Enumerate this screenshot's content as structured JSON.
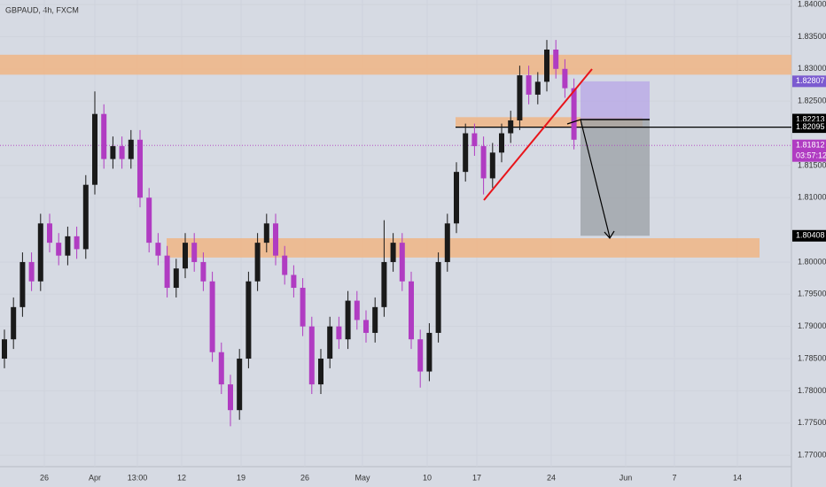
{
  "chart_data": {
    "type": "candlestick",
    "title": "GBPAUD, 4h, FXCM",
    "up_color": "#1a1a1a",
    "down_color": "#b03cc2",
    "ylim": [
      1.7685,
      1.8407
    ],
    "yticks": [
      {
        "value": 1.84,
        "label": "1.84000"
      },
      {
        "value": 1.835,
        "label": "1.83500"
      },
      {
        "value": 1.83,
        "label": "1.83000"
      },
      {
        "value": 1.825,
        "label": "1.82500"
      },
      {
        "value": 1.815,
        "label": "1.81500"
      },
      {
        "value": 1.81,
        "label": "1.81000"
      },
      {
        "value": 1.8,
        "label": "1.80000"
      },
      {
        "value": 1.795,
        "label": "1.79500"
      },
      {
        "value": 1.79,
        "label": "1.79000"
      },
      {
        "value": 1.785,
        "label": "1.78500"
      },
      {
        "value": 1.78,
        "label": "1.78000"
      },
      {
        "value": 1.775,
        "label": "1.77500"
      },
      {
        "value": 1.77,
        "label": "1.77000"
      }
    ],
    "xlabels": [
      "26",
      "Apr",
      "13:00",
      "12",
      "19",
      "26",
      "May",
      "10",
      "17",
      "24",
      "Jun",
      "7",
      "14"
    ],
    "open": [
      1.785,
      1.788,
      1.793,
      1.8,
      1.797,
      1.806,
      1.803,
      1.801,
      1.804,
      1.802,
      1.812,
      1.823,
      1.816,
      1.818,
      1.816,
      1.819,
      1.81,
      1.803,
      1.801,
      1.796,
      1.799,
      1.803,
      1.8,
      1.797,
      1.786,
      1.781,
      1.777,
      1.785,
      1.797,
      1.803,
      1.806,
      1.801,
      1.798,
      1.796,
      1.79,
      1.781,
      1.785,
      1.79,
      1.788,
      1.794,
      1.791,
      1.789,
      1.793,
      1.8,
      1.803,
      1.797,
      1.788,
      1.783,
      1.789,
      1.8,
      1.806,
      1.814,
      1.82,
      1.818,
      1.813,
      1.817,
      1.82,
      1.822,
      1.829,
      1.826,
      1.828,
      1.833,
      1.83,
      1.827
    ],
    "high": [
      1.7895,
      1.7945,
      1.8015,
      1.8015,
      1.8075,
      1.8075,
      1.8045,
      1.8055,
      1.8055,
      1.8135,
      1.8265,
      1.8245,
      1.8195,
      1.8195,
      1.8205,
      1.8205,
      1.8115,
      1.8045,
      1.8025,
      1.8005,
      1.8045,
      1.8045,
      1.8015,
      1.7985,
      1.7875,
      1.7825,
      1.7865,
      1.7985,
      1.8045,
      1.8075,
      1.8075,
      1.8025,
      1.7995,
      1.7975,
      1.7915,
      1.7865,
      1.7915,
      1.7915,
      1.7955,
      1.7955,
      1.7925,
      1.7945,
      1.8065,
      1.8045,
      1.8045,
      1.7985,
      1.7895,
      1.7905,
      1.8015,
      1.8075,
      1.8155,
      1.8215,
      1.8215,
      1.8195,
      1.8185,
      1.8215,
      1.8235,
      1.8305,
      1.8305,
      1.8295,
      1.8345,
      1.8345,
      1.8315,
      1.8285
    ],
    "low": [
      1.7835,
      1.7865,
      1.7915,
      1.7955,
      1.7955,
      1.8015,
      1.7995,
      1.7995,
      1.8005,
      1.8005,
      1.8105,
      1.8145,
      1.8145,
      1.8145,
      1.8145,
      1.8085,
      1.8015,
      1.7995,
      1.7945,
      1.7945,
      1.7975,
      1.7985,
      1.7955,
      1.7845,
      1.7795,
      1.7745,
      1.7755,
      1.7835,
      1.7955,
      1.8015,
      1.7995,
      1.7965,
      1.7945,
      1.7885,
      1.7795,
      1.7795,
      1.7835,
      1.7865,
      1.7865,
      1.7895,
      1.7875,
      1.7875,
      1.7915,
      1.7985,
      1.7955,
      1.7865,
      1.7805,
      1.7815,
      1.7875,
      1.7985,
      1.8045,
      1.8125,
      1.8165,
      1.8105,
      1.8115,
      1.8155,
      1.8185,
      1.8205,
      1.8245,
      1.8245,
      1.8265,
      1.8285,
      1.8255,
      1.8175
    ],
    "close": [
      1.788,
      1.793,
      1.8,
      1.797,
      1.806,
      1.803,
      1.801,
      1.804,
      1.802,
      1.812,
      1.823,
      1.816,
      1.818,
      1.816,
      1.819,
      1.81,
      1.803,
      1.801,
      1.796,
      1.799,
      1.803,
      1.8,
      1.797,
      1.786,
      1.781,
      1.777,
      1.785,
      1.797,
      1.803,
      1.806,
      1.801,
      1.798,
      1.796,
      1.79,
      1.781,
      1.785,
      1.79,
      1.788,
      1.794,
      1.791,
      1.789,
      1.793,
      1.8,
      1.803,
      1.797,
      1.788,
      1.783,
      1.789,
      1.8,
      1.806,
      1.814,
      1.82,
      1.818,
      1.813,
      1.817,
      1.82,
      1.822,
      1.829,
      1.826,
      1.828,
      1.833,
      1.83,
      1.827,
      1.819
    ],
    "zones": [
      {
        "top": 1.8322,
        "bottom": 1.8291,
        "color": "#f0b585"
      },
      {
        "top": 1.8225,
        "bottom": 1.821,
        "color": "#f0b585"
      },
      {
        "top": 1.8037,
        "bottom": 1.8007,
        "color": "#f0b585"
      }
    ],
    "position": {
      "stop": 1.82807,
      "entry": 1.82213,
      "target": 1.80408,
      "stop_color": "#b9a9e6",
      "target_color": "#9ea3a8"
    },
    "level": 1.82095,
    "last_price": 1.81812,
    "price_labels": [
      {
        "value": 1.82807,
        "label": "1.82807",
        "color": "#7b5bd0"
      },
      {
        "value": 1.82213,
        "label": "1.82213",
        "color": "#000000"
      },
      {
        "value": 1.82095,
        "label": "1.82095",
        "color": "#000000"
      },
      {
        "value": 1.81812,
        "label": "1.81812",
        "color": "#b03cc2"
      },
      {
        "value": 1.80408,
        "label": "1.80408",
        "color": "#000000"
      }
    ],
    "countdown": "03:57:12"
  }
}
